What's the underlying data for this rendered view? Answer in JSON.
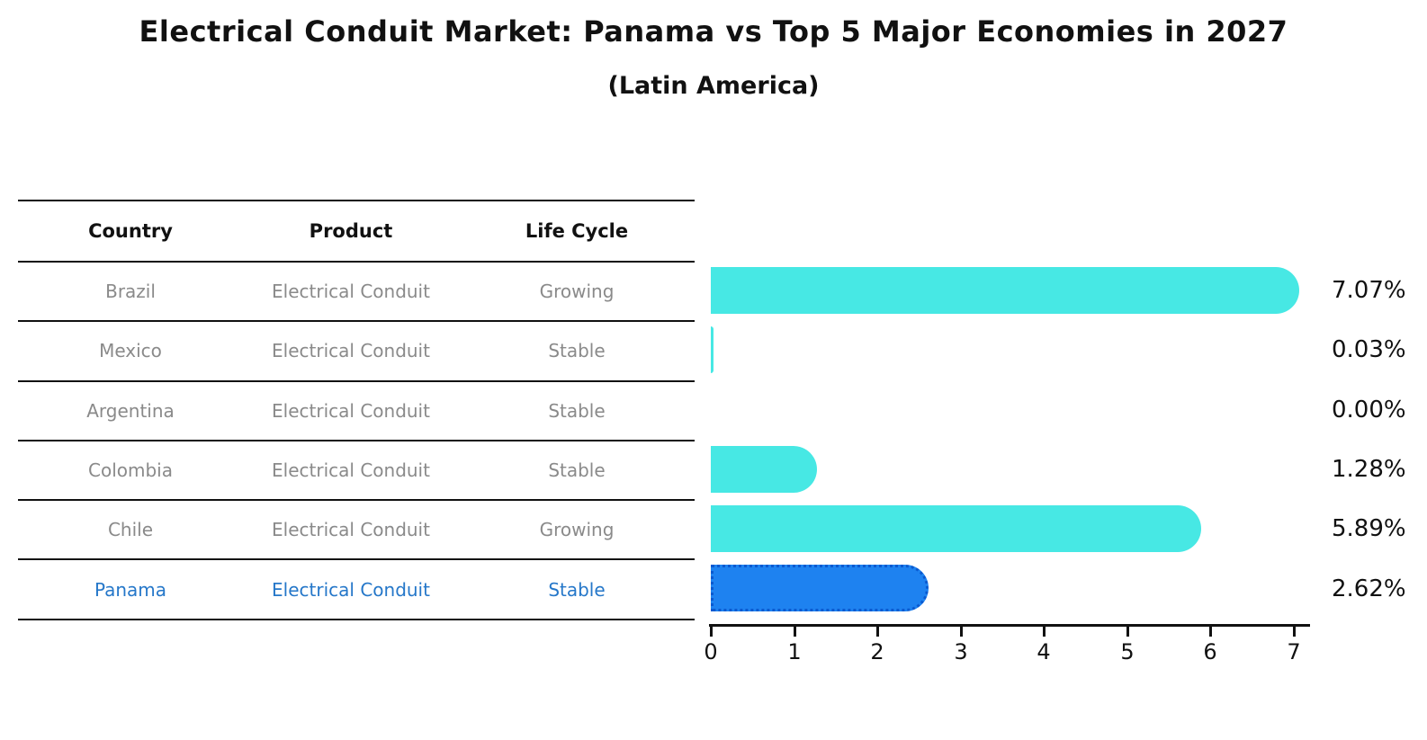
{
  "header": {
    "title": "Electrical Conduit Market: Panama vs Top 5 Major Economies in 2027",
    "subtitle": "(Latin America)"
  },
  "table": {
    "columns": [
      "Country",
      "Product",
      "Life Cycle"
    ],
    "rows": [
      {
        "country": "Brazil",
        "product": "Electrical Conduit",
        "life_cycle": "Growing"
      },
      {
        "country": "Mexico",
        "product": "Electrical Conduit",
        "life_cycle": "Stable"
      },
      {
        "country": "Argentina",
        "product": "Electrical Conduit",
        "life_cycle": "Stable"
      },
      {
        "country": "Colombia",
        "product": "Electrical Conduit",
        "life_cycle": "Stable"
      },
      {
        "country": "Chile",
        "product": "Electrical Conduit",
        "life_cycle": "Growing"
      },
      {
        "country": "Panama",
        "product": "Electrical Conduit",
        "life_cycle": "Stable"
      }
    ],
    "highlight_row": "Panama"
  },
  "chart_data": {
    "type": "bar",
    "orientation": "horizontal",
    "title": "Electrical Conduit Market: Panama vs Top 5 Major Economies in 2027",
    "subtitle": "(Latin America)",
    "categories": [
      "Brazil",
      "Mexico",
      "Argentina",
      "Colombia",
      "Chile",
      "Panama"
    ],
    "values": [
      7.07,
      0.03,
      0.0,
      1.28,
      5.89,
      2.62
    ],
    "value_labels": [
      "7.07%",
      "0.03%",
      "0.00%",
      "1.28%",
      "5.89%",
      "2.62%"
    ],
    "xlim": [
      0,
      7.2
    ],
    "tick_labels": [
      "0",
      "1",
      "2",
      "3",
      "4",
      "5",
      "6",
      "7"
    ],
    "grid": false,
    "legend": false,
    "bar_color": "#47e8e4",
    "highlight_color": "#1e82f0",
    "highlight_border_color": "#0a5ad0",
    "highlight_index": 5
  },
  "colors": {
    "text_primary": "#111111",
    "text_muted": "#8a8a8a",
    "highlight_text": "#2577c9",
    "background": "#ffffff"
  }
}
